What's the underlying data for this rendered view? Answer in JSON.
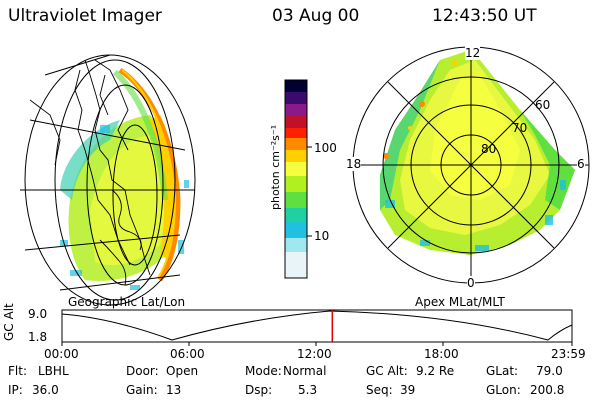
{
  "header": {
    "title": "Ultraviolet Imager",
    "date": "03 Aug 00",
    "time": "12:43:50 UT"
  },
  "left_panel": {
    "caption": "Geographic Lat/Lon"
  },
  "colorbar": {
    "unit_label": "photon cm⁻²s⁻¹",
    "ticks": [
      "100",
      "10"
    ],
    "colors": [
      "#000033",
      "#3a0a6e",
      "#8a1a8a",
      "#c0102a",
      "#ff2000",
      "#ff8a00",
      "#ffd000",
      "#f5ff40",
      "#b0f020",
      "#60e040",
      "#20d0a0",
      "#20c0e0",
      "#a0e8f0",
      "#e8f4f8"
    ]
  },
  "right_panel": {
    "caption": "Apex MLat/MLT",
    "mlt_labels": {
      "top": "12",
      "left": "18",
      "right": "6",
      "bottom": "0"
    },
    "lat_labels": [
      "60",
      "70",
      "80"
    ]
  },
  "timeline": {
    "axis_label": "GC Alt",
    "y_top": "9.0",
    "y_bottom": "1.8",
    "x_ticks": [
      "00:00",
      "06:00",
      "12:00",
      "18:00",
      "23:59"
    ],
    "current_time_fraction": 0.53
  },
  "info": {
    "flt_label": "Flt:",
    "flt": "LBHL",
    "door_label": "Door:",
    "door": "Open",
    "mode_label": "Mode:",
    "mode": "Normal",
    "gcalt_label": "GC Alt:",
    "gcalt": "9.2 Re",
    "glat_label": "GLat:",
    "glat": "79.0",
    "ip_label": "IP:",
    "ip": "36.0",
    "gain_label": "Gain:",
    "gain": "13",
    "dsp_label": "Dsp:",
    "dsp": "5.3",
    "seq_label": "Seq:",
    "seq": "39",
    "glon_label": "GLon:",
    "glon": "200.8"
  }
}
